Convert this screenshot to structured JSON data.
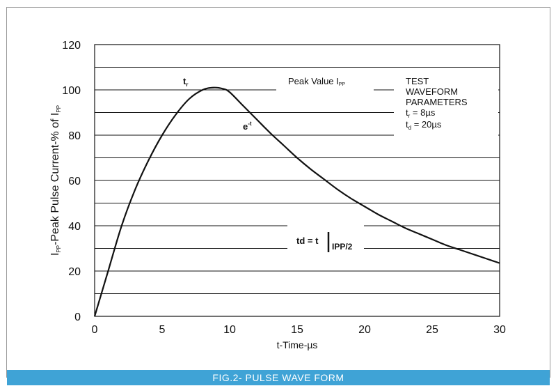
{
  "chart_data": {
    "type": "line",
    "xlabel": "t-Time-µs",
    "ylabel": {
      "pre": "I",
      "sub": "PP",
      "mid": "-Peak Pulse Current-% of I",
      "sub2": "PP"
    },
    "xlim": [
      0,
      30
    ],
    "ylim": [
      0,
      120
    ],
    "x_ticks": [
      "0",
      "5",
      "10",
      "15",
      "20",
      "25",
      "30"
    ],
    "y_ticks": [
      "0",
      "20",
      "40",
      "60",
      "80",
      "100",
      "120"
    ],
    "grid": "horizontal",
    "series": [
      {
        "x": [
          0,
          1,
          2,
          3,
          4,
          5,
          6,
          7,
          8,
          8.8,
          9.5,
          10,
          11,
          12,
          13,
          14,
          15,
          16,
          17,
          18,
          19,
          20,
          21,
          22,
          23,
          24,
          25,
          26,
          27,
          28,
          29,
          30
        ],
        "y": [
          0,
          20,
          40,
          56,
          69,
          80,
          89,
          96,
          100,
          101,
          100.5,
          99,
          93,
          87,
          81,
          75.5,
          70,
          65,
          60.5,
          56,
          52,
          48.5,
          45,
          42,
          39,
          36.5,
          34,
          31.5,
          29.5,
          27.5,
          25.5,
          23.5
        ]
      }
    ],
    "annotations": {
      "tr": {
        "base": "t",
        "sub": "r"
      },
      "peak": {
        "text": "Peak Value I",
        "sub": "PP"
      },
      "eminus": {
        "base": "e",
        "sup": "-t"
      },
      "td": {
        "base": "td = t",
        "sub": "IPP/2"
      },
      "params": {
        "line1": "TEST",
        "line2": "WAVEFORM",
        "line3": "PARAMETERS",
        "tr_base": "t",
        "tr_sub": "r",
        "tr_val": " = 8µs",
        "td_base": "t",
        "td_sub": "d",
        "td_val": " = 20µs"
      }
    },
    "caption": "FIG.2- PULSE  WAVE  FORM"
  }
}
